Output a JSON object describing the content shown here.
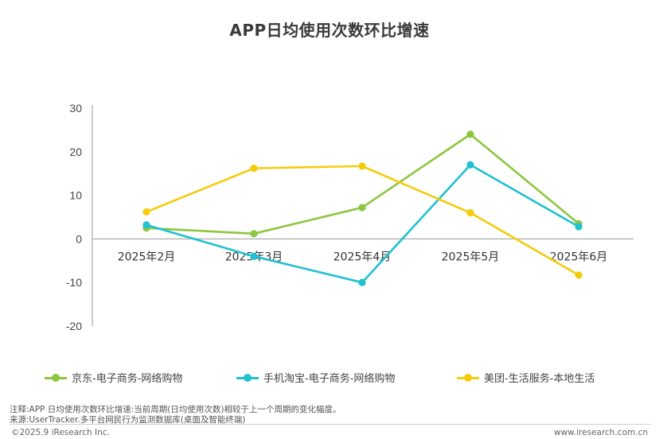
{
  "chart_data": {
    "type": "line",
    "title": "APP日均使用次数环比增速",
    "categories": [
      "2025年2月",
      "2025年3月",
      "2025年4月",
      "2025年5月",
      "2025年6月"
    ],
    "y_ticks": [
      "30",
      "20",
      "10",
      "0",
      "-10",
      "-20"
    ],
    "ylim": [
      -20,
      30
    ],
    "xlabel": "",
    "ylabel": "",
    "grid": false,
    "legend_position": "bottom",
    "series": [
      {
        "name": "京东-电子商务-网络购物",
        "color": "#8DC63F",
        "values": [
          2.5,
          1.2,
          7.2,
          24.0,
          3.5
        ]
      },
      {
        "name": "手机淘宝-电子商务-网络购物",
        "color": "#1FC1D2",
        "values": [
          3.2,
          -4.0,
          -10.0,
          17.0,
          2.8
        ]
      },
      {
        "name": "美团-生活服务-本地生活",
        "color": "#F5CC0A",
        "values": [
          6.2,
          16.2,
          16.7,
          6.0,
          -8.3
        ]
      }
    ]
  },
  "notes": {
    "note": "注释:APP 日均使用次数环比增速:当前周期(日均使用次数)相较于上一个周期的变化幅度。",
    "source": "来源:UserTracker.多平台网民行为监测数据库(桌面及智能终端)",
    "copyright": "©2025.9 iResearch Inc.",
    "website": "www.iresearch.com.cn"
  }
}
